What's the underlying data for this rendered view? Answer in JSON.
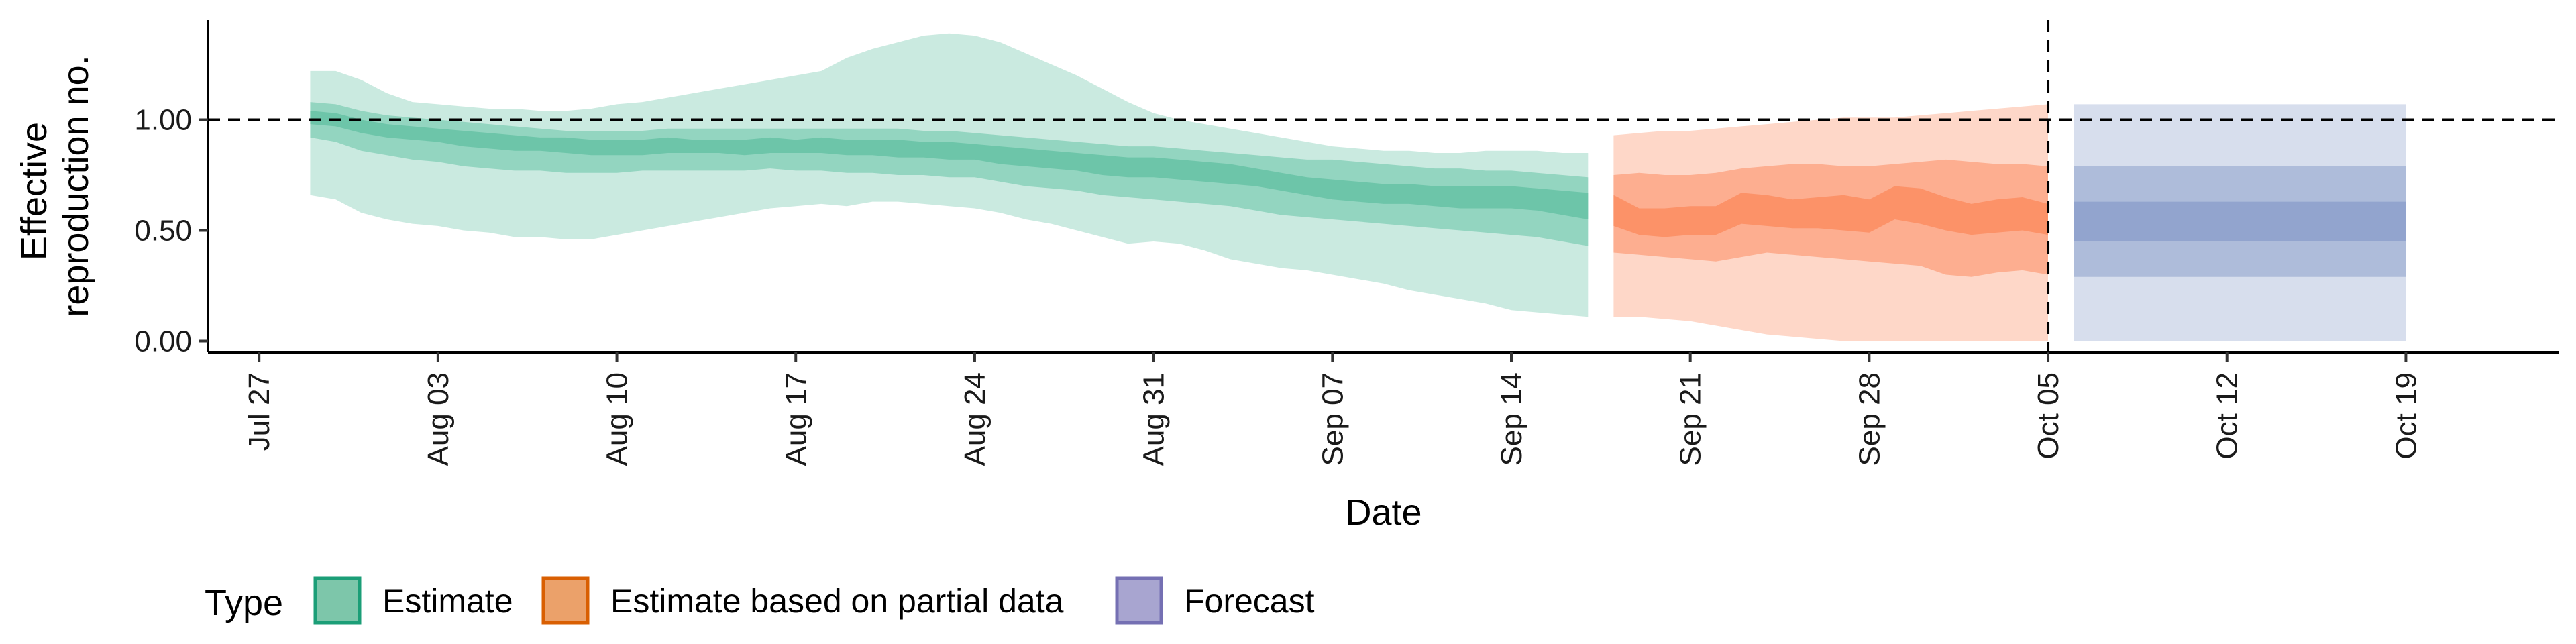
{
  "chart_data": {
    "type": "area",
    "title": "",
    "xlabel": "Date",
    "ylabel_lines": [
      "Effective",
      "reproduction no."
    ],
    "y_ticks": [
      "0.00",
      "0.50",
      "1.00"
    ],
    "y_tick_values": [
      0,
      0.5,
      1.0
    ],
    "ylim": [
      -0.05,
      1.45
    ],
    "x_ticks": [
      "Jul 27",
      "Aug 03",
      "Aug 10",
      "Aug 17",
      "Aug 24",
      "Aug 31",
      "Sep 07",
      "Sep 14",
      "Sep 21",
      "Sep 28",
      "Oct 05",
      "Oct 12",
      "Oct 19"
    ],
    "x_tick_dates": [
      "2020-07-27",
      "2020-08-03",
      "2020-08-10",
      "2020-08-17",
      "2020-08-24",
      "2020-08-31",
      "2020-09-07",
      "2020-09-14",
      "2020-09-21",
      "2020-09-28",
      "2020-10-05",
      "2020-10-12",
      "2020-10-19"
    ],
    "xlim": [
      "2020-07-25",
      "2020-10-25"
    ],
    "reference_line_y": 1.0,
    "vertical_line_date": "2020-10-05",
    "legend": {
      "title": "Type",
      "position": "bottom-left",
      "entries": [
        {
          "label": "Estimate",
          "fill": "#7dc6aa",
          "stroke": "#1b9e77"
        },
        {
          "label": "Estimate based on partial data",
          "fill": "#eba16a",
          "stroke": "#d95f02"
        },
        {
          "label": "Forecast",
          "fill": "#a8a5d0",
          "stroke": "#7570b3"
        }
      ]
    },
    "band_opacity": [
      0.35,
      0.55,
      0.85
    ],
    "series": [
      {
        "name": "Estimate",
        "color": "#66c2a5",
        "x": [
          "2020-07-29",
          "2020-07-30",
          "2020-07-31",
          "2020-08-01",
          "2020-08-02",
          "2020-08-03",
          "2020-08-04",
          "2020-08-05",
          "2020-08-06",
          "2020-08-07",
          "2020-08-08",
          "2020-08-09",
          "2020-08-10",
          "2020-08-11",
          "2020-08-12",
          "2020-08-13",
          "2020-08-14",
          "2020-08-15",
          "2020-08-16",
          "2020-08-17",
          "2020-08-18",
          "2020-08-19",
          "2020-08-20",
          "2020-08-21",
          "2020-08-22",
          "2020-08-23",
          "2020-08-24",
          "2020-08-25",
          "2020-08-26",
          "2020-08-27",
          "2020-08-28",
          "2020-08-29",
          "2020-08-30",
          "2020-08-31",
          "2020-09-01",
          "2020-09-02",
          "2020-09-03",
          "2020-09-04",
          "2020-09-05",
          "2020-09-06",
          "2020-09-07",
          "2020-09-08",
          "2020-09-09",
          "2020-09-10",
          "2020-09-11",
          "2020-09-12",
          "2020-09-13",
          "2020-09-14",
          "2020-09-15",
          "2020-09-16",
          "2020-09-17"
        ],
        "lower90": [
          0.66,
          0.64,
          0.58,
          0.55,
          0.53,
          0.52,
          0.5,
          0.49,
          0.47,
          0.47,
          0.46,
          0.46,
          0.48,
          0.5,
          0.52,
          0.54,
          0.56,
          0.58,
          0.6,
          0.61,
          0.62,
          0.61,
          0.63,
          0.63,
          0.62,
          0.61,
          0.6,
          0.58,
          0.55,
          0.53,
          0.5,
          0.47,
          0.44,
          0.45,
          0.44,
          0.41,
          0.37,
          0.35,
          0.33,
          0.32,
          0.3,
          0.28,
          0.26,
          0.23,
          0.21,
          0.19,
          0.17,
          0.14,
          0.13,
          0.12,
          0.11
        ],
        "upper90": [
          1.22,
          1.22,
          1.18,
          1.12,
          1.08,
          1.07,
          1.06,
          1.05,
          1.05,
          1.04,
          1.04,
          1.05,
          1.07,
          1.08,
          1.1,
          1.12,
          1.14,
          1.16,
          1.18,
          1.2,
          1.22,
          1.28,
          1.32,
          1.35,
          1.38,
          1.39,
          1.38,
          1.35,
          1.3,
          1.25,
          1.2,
          1.14,
          1.08,
          1.03,
          1.0,
          0.98,
          0.96,
          0.94,
          0.92,
          0.9,
          0.88,
          0.87,
          0.86,
          0.86,
          0.85,
          0.85,
          0.86,
          0.86,
          0.86,
          0.85,
          0.85
        ],
        "lower50": [
          0.92,
          0.9,
          0.86,
          0.84,
          0.82,
          0.81,
          0.79,
          0.78,
          0.77,
          0.77,
          0.76,
          0.76,
          0.76,
          0.77,
          0.77,
          0.77,
          0.77,
          0.77,
          0.78,
          0.77,
          0.77,
          0.76,
          0.76,
          0.75,
          0.75,
          0.74,
          0.74,
          0.72,
          0.7,
          0.69,
          0.68,
          0.66,
          0.65,
          0.64,
          0.63,
          0.62,
          0.61,
          0.59,
          0.57,
          0.56,
          0.55,
          0.54,
          0.53,
          0.52,
          0.51,
          0.5,
          0.49,
          0.48,
          0.47,
          0.45,
          0.43
        ],
        "upper50": [
          1.08,
          1.07,
          1.04,
          1.02,
          1.01,
          1.0,
          0.99,
          0.98,
          0.97,
          0.96,
          0.95,
          0.95,
          0.95,
          0.95,
          0.96,
          0.96,
          0.96,
          0.96,
          0.96,
          0.96,
          0.96,
          0.96,
          0.96,
          0.96,
          0.95,
          0.95,
          0.94,
          0.93,
          0.92,
          0.91,
          0.9,
          0.89,
          0.88,
          0.88,
          0.87,
          0.86,
          0.85,
          0.84,
          0.83,
          0.82,
          0.82,
          0.81,
          0.8,
          0.79,
          0.78,
          0.78,
          0.77,
          0.77,
          0.76,
          0.75,
          0.74
        ],
        "lower20": [
          0.98,
          0.97,
          0.94,
          0.92,
          0.91,
          0.9,
          0.88,
          0.87,
          0.86,
          0.86,
          0.85,
          0.84,
          0.84,
          0.84,
          0.85,
          0.85,
          0.85,
          0.84,
          0.85,
          0.85,
          0.85,
          0.84,
          0.84,
          0.83,
          0.83,
          0.82,
          0.82,
          0.8,
          0.79,
          0.78,
          0.77,
          0.75,
          0.74,
          0.74,
          0.73,
          0.72,
          0.71,
          0.7,
          0.68,
          0.66,
          0.64,
          0.63,
          0.62,
          0.62,
          0.61,
          0.6,
          0.6,
          0.6,
          0.59,
          0.57,
          0.55
        ],
        "upper20": [
          1.04,
          1.03,
          1.0,
          0.98,
          0.97,
          0.96,
          0.95,
          0.94,
          0.93,
          0.92,
          0.92,
          0.91,
          0.91,
          0.91,
          0.92,
          0.91,
          0.91,
          0.91,
          0.92,
          0.91,
          0.92,
          0.91,
          0.91,
          0.91,
          0.9,
          0.9,
          0.89,
          0.88,
          0.87,
          0.86,
          0.85,
          0.84,
          0.83,
          0.83,
          0.82,
          0.81,
          0.8,
          0.78,
          0.76,
          0.74,
          0.73,
          0.72,
          0.71,
          0.71,
          0.7,
          0.7,
          0.7,
          0.7,
          0.69,
          0.68,
          0.67
        ]
      },
      {
        "name": "Estimate based on partial data",
        "color": "#fc8d62",
        "x": [
          "2020-09-18",
          "2020-09-19",
          "2020-09-20",
          "2020-09-21",
          "2020-09-22",
          "2020-09-23",
          "2020-09-24",
          "2020-09-25",
          "2020-09-26",
          "2020-09-27",
          "2020-09-28",
          "2020-09-29",
          "2020-09-30",
          "2020-10-01",
          "2020-10-02",
          "2020-10-03",
          "2020-10-04",
          "2020-10-05"
        ],
        "lower90": [
          0.11,
          0.11,
          0.1,
          0.09,
          0.07,
          0.05,
          0.03,
          0.02,
          0.01,
          0.0,
          0.0,
          0.0,
          0.0,
          0.0,
          0.0,
          0.0,
          0.0,
          0.0
        ],
        "upper90": [
          0.93,
          0.94,
          0.95,
          0.95,
          0.96,
          0.97,
          0.98,
          0.99,
          1.0,
          1.01,
          1.01,
          1.01,
          1.02,
          1.03,
          1.04,
          1.05,
          1.06,
          1.07
        ],
        "lower50": [
          0.4,
          0.39,
          0.38,
          0.37,
          0.36,
          0.38,
          0.4,
          0.39,
          0.38,
          0.37,
          0.36,
          0.35,
          0.34,
          0.3,
          0.29,
          0.31,
          0.32,
          0.3
        ],
        "upper50": [
          0.75,
          0.76,
          0.75,
          0.75,
          0.76,
          0.78,
          0.79,
          0.8,
          0.8,
          0.79,
          0.79,
          0.8,
          0.81,
          0.82,
          0.81,
          0.8,
          0.8,
          0.79
        ],
        "lower20": [
          0.52,
          0.48,
          0.47,
          0.48,
          0.48,
          0.53,
          0.52,
          0.51,
          0.51,
          0.5,
          0.49,
          0.55,
          0.53,
          0.5,
          0.48,
          0.49,
          0.5,
          0.48
        ],
        "upper20": [
          0.66,
          0.6,
          0.6,
          0.61,
          0.61,
          0.67,
          0.66,
          0.64,
          0.65,
          0.66,
          0.64,
          0.7,
          0.69,
          0.65,
          0.62,
          0.64,
          0.65,
          0.62
        ]
      },
      {
        "name": "Forecast",
        "color": "#8da0cb",
        "x": [
          "2020-10-06",
          "2020-10-19"
        ],
        "lower90": [
          0.0,
          0.0
        ],
        "upper90": [
          1.07,
          1.07
        ],
        "lower50": [
          0.29,
          0.29
        ],
        "upper50": [
          0.79,
          0.79
        ],
        "lower20": [
          0.45,
          0.45
        ],
        "upper20": [
          0.63,
          0.63
        ]
      }
    ],
    "colors": {
      "estimate_band": "#66c2a5",
      "partial_band": "#fc8d62",
      "forecast_band": "#8da0cb"
    }
  }
}
